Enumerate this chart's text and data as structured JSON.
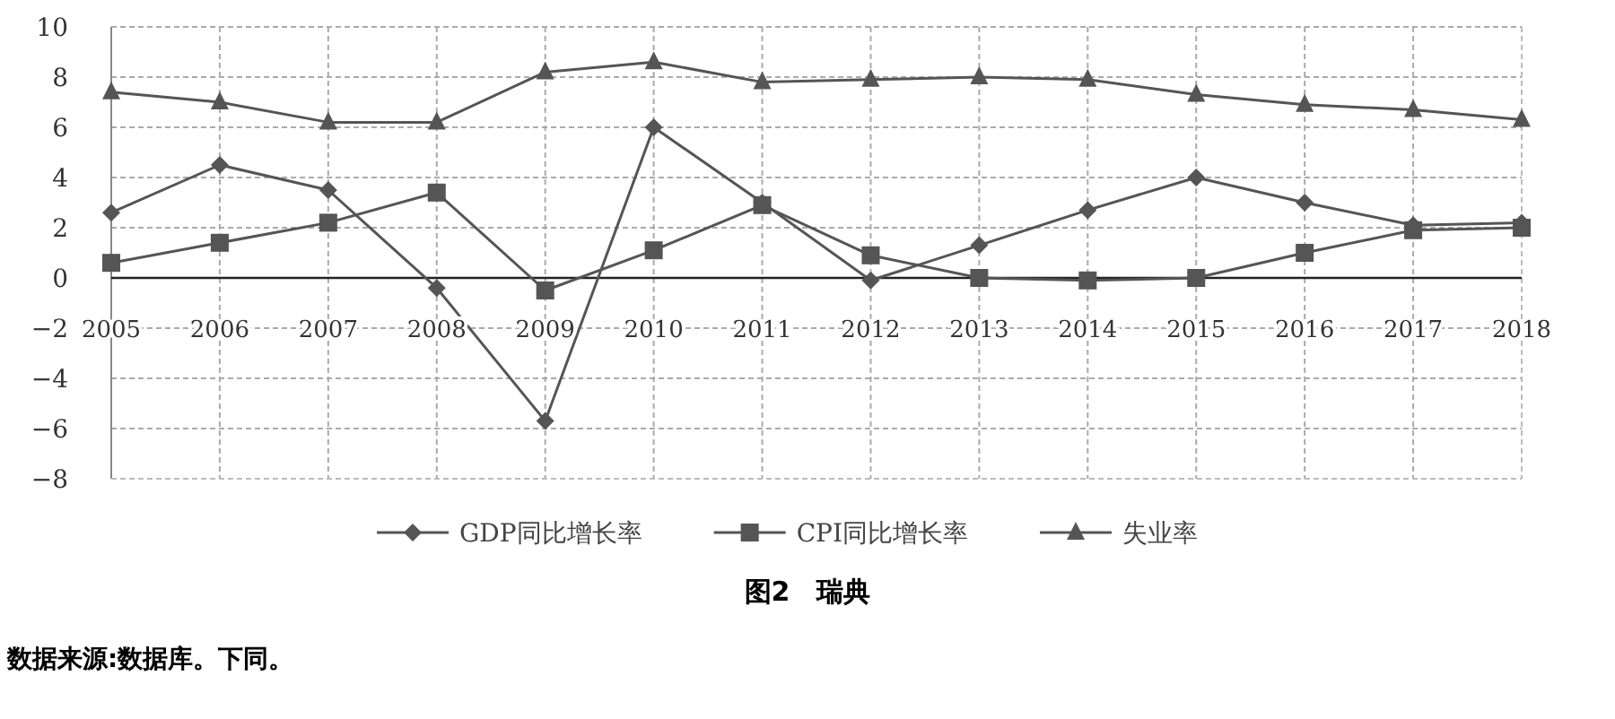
{
  "chart_data": {
    "type": "line",
    "title": "图2　瑞典",
    "annotations": [
      "数据来源:数据库。下同。"
    ],
    "categories": [
      "2005",
      "2006",
      "2007",
      "2008",
      "2009",
      "2010",
      "2011",
      "2012",
      "2013",
      "2014",
      "2015",
      "2016",
      "2017",
      "2018"
    ],
    "ylim": [
      -8,
      10
    ],
    "yticks": [
      -8,
      -6,
      -4,
      -2,
      0,
      2,
      4,
      6,
      8,
      10
    ],
    "grid": true,
    "legend": "bottom",
    "line_style": "solid",
    "series": [
      {
        "name": "GDP同比增长率",
        "color": "#555555",
        "marker": "diamond",
        "values": [
          2.6,
          4.5,
          3.5,
          -0.4,
          -5.7,
          6.0,
          3.0,
          -0.1,
          1.3,
          2.7,
          4.0,
          3.0,
          2.1,
          2.2
        ]
      },
      {
        "name": "CPI同比增长率",
        "color": "#555555",
        "marker": "square",
        "values": [
          0.6,
          1.4,
          2.2,
          3.4,
          -0.5,
          1.1,
          2.9,
          0.9,
          0.0,
          -0.1,
          0.0,
          1.0,
          1.9,
          2.0
        ]
      },
      {
        "name": "失业率",
        "color": "#555555",
        "marker": "triangle",
        "values": [
          7.4,
          7.0,
          6.2,
          6.2,
          8.2,
          8.6,
          7.8,
          7.9,
          8.0,
          7.9,
          7.3,
          6.9,
          6.7,
          6.3
        ]
      }
    ]
  }
}
